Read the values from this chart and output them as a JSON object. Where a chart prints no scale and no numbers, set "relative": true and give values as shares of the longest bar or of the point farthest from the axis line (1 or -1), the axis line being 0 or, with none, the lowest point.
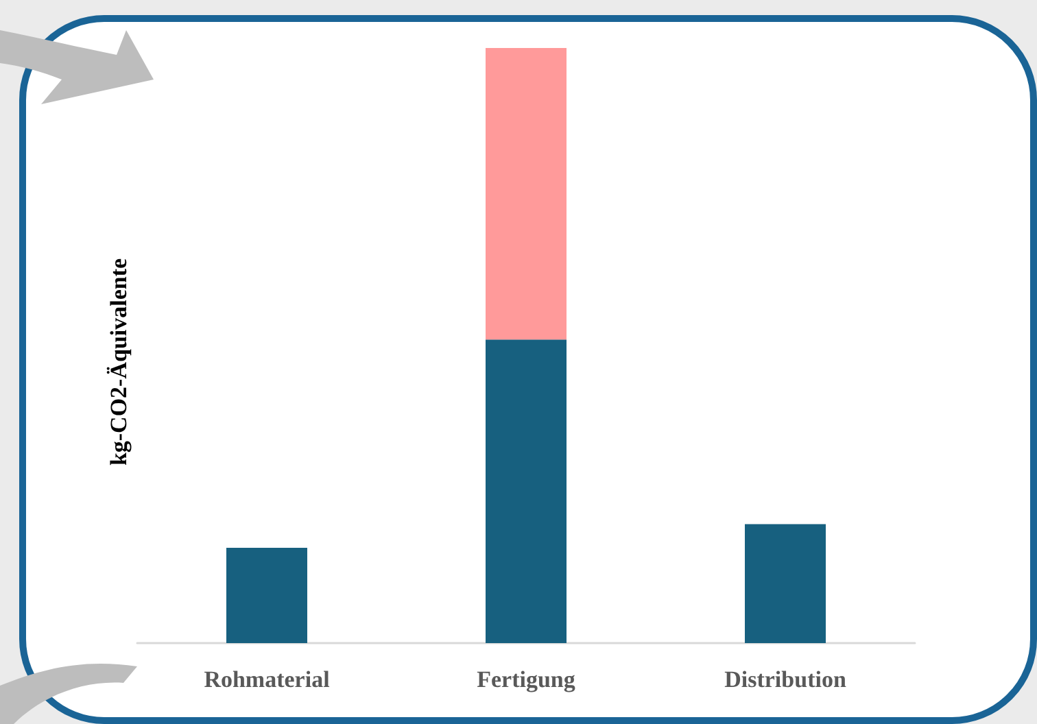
{
  "chart_data": {
    "type": "bar",
    "ylabel": "kg-CO2-Äquivalente",
    "categories": [
      "Rohmaterial",
      "Fertigung",
      "Distribution"
    ],
    "relative": true,
    "stacked": true,
    "grid": false,
    "series": [
      {
        "color": "#17607f",
        "values": [
          0.16,
          0.51,
          0.2
        ]
      },
      {
        "color": "#ff9a9a",
        "values": [
          null,
          0.49,
          null
        ]
      }
    ]
  }
}
